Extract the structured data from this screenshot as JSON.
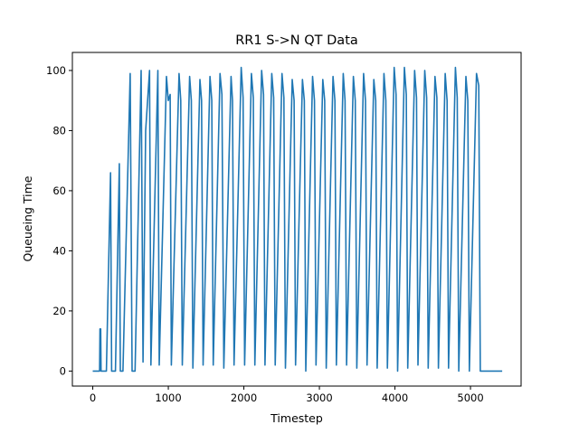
{
  "chart_data": {
    "type": "line",
    "title": "RR1 S->N QT Data",
    "xlabel": "Timestep",
    "ylabel": "Queueing Time",
    "xlim": [
      -270,
      5670
    ],
    "ylim": [
      -5,
      106
    ],
    "x_ticks": [
      0,
      1000,
      2000,
      3000,
      4000,
      5000
    ],
    "y_ticks": [
      0,
      20,
      40,
      60,
      80,
      100
    ],
    "x_tick_labels": [
      "0",
      "1000",
      "2000",
      "3000",
      "4000",
      "5000"
    ],
    "y_tick_labels": [
      "0",
      "20",
      "40",
      "60",
      "80",
      "100"
    ],
    "grid": false,
    "legend": "none",
    "series": [
      {
        "color": "#1f77b4",
        "points": [
          [
            0,
            0
          ],
          [
            90,
            0
          ],
          [
            95,
            14
          ],
          [
            105,
            14
          ],
          [
            110,
            0
          ],
          [
            180,
            0
          ],
          [
            235,
            66
          ],
          [
            250,
            0
          ],
          [
            300,
            0
          ],
          [
            352,
            69
          ],
          [
            365,
            0
          ],
          [
            400,
            0
          ],
          [
            495,
            99
          ],
          [
            520,
            0
          ],
          [
            560,
            0
          ],
          [
            640,
            100
          ],
          [
            665,
            3
          ],
          [
            700,
            80
          ],
          [
            752,
            100
          ],
          [
            770,
            2
          ],
          [
            862,
            100
          ],
          [
            880,
            2
          ],
          [
            975,
            98
          ],
          [
            1000,
            90
          ],
          [
            1025,
            92
          ],
          [
            1040,
            2
          ],
          [
            1142,
            99
          ],
          [
            1165,
            90
          ],
          [
            1185,
            2
          ],
          [
            1282,
            98
          ],
          [
            1305,
            90
          ],
          [
            1325,
            1
          ],
          [
            1418,
            97
          ],
          [
            1440,
            90
          ],
          [
            1460,
            2
          ],
          [
            1552,
            98
          ],
          [
            1575,
            90
          ],
          [
            1595,
            2
          ],
          [
            1685,
            99
          ],
          [
            1710,
            92
          ],
          [
            1735,
            1
          ],
          [
            1830,
            98
          ],
          [
            1850,
            90
          ],
          [
            1870,
            2
          ],
          [
            1965,
            101
          ],
          [
            1990,
            91
          ],
          [
            2010,
            2
          ],
          [
            2100,
            99
          ],
          [
            2125,
            91
          ],
          [
            2145,
            2
          ],
          [
            2235,
            100
          ],
          [
            2260,
            92
          ],
          [
            2280,
            2
          ],
          [
            2370,
            99
          ],
          [
            2395,
            91
          ],
          [
            2415,
            2
          ],
          [
            2505,
            99
          ],
          [
            2530,
            91
          ],
          [
            2550,
            1
          ],
          [
            2640,
            97
          ],
          [
            2665,
            90
          ],
          [
            2685,
            2
          ],
          [
            2775,
            97
          ],
          [
            2800,
            90
          ],
          [
            2820,
            0
          ],
          [
            2910,
            98
          ],
          [
            2935,
            90
          ],
          [
            2955,
            2
          ],
          [
            3045,
            97
          ],
          [
            3070,
            90
          ],
          [
            3090,
            1
          ],
          [
            3180,
            98
          ],
          [
            3205,
            90
          ],
          [
            3225,
            2
          ],
          [
            3315,
            99
          ],
          [
            3340,
            90
          ],
          [
            3360,
            2
          ],
          [
            3450,
            98
          ],
          [
            3475,
            90
          ],
          [
            3495,
            1
          ],
          [
            3585,
            99
          ],
          [
            3610,
            90
          ],
          [
            3630,
            2
          ],
          [
            3720,
            97
          ],
          [
            3745,
            90
          ],
          [
            3765,
            1
          ],
          [
            3855,
            99
          ],
          [
            3880,
            90
          ],
          [
            3900,
            1
          ],
          [
            3990,
            101
          ],
          [
            4015,
            92
          ],
          [
            4035,
            0
          ],
          [
            4125,
            101
          ],
          [
            4150,
            92
          ],
          [
            4170,
            1
          ],
          [
            4260,
            100
          ],
          [
            4285,
            91
          ],
          [
            4305,
            2
          ],
          [
            4395,
            100
          ],
          [
            4420,
            91
          ],
          [
            4440,
            1
          ],
          [
            4530,
            98
          ],
          [
            4555,
            91
          ],
          [
            4575,
            1
          ],
          [
            4665,
            99
          ],
          [
            4690,
            90
          ],
          [
            4710,
            1
          ],
          [
            4800,
            101
          ],
          [
            4825,
            91
          ],
          [
            4845,
            0
          ],
          [
            4940,
            98
          ],
          [
            4965,
            90
          ],
          [
            4985,
            0
          ],
          [
            5080,
            99
          ],
          [
            5110,
            95
          ],
          [
            5130,
            0
          ],
          [
            5420,
            0
          ]
        ]
      }
    ]
  }
}
